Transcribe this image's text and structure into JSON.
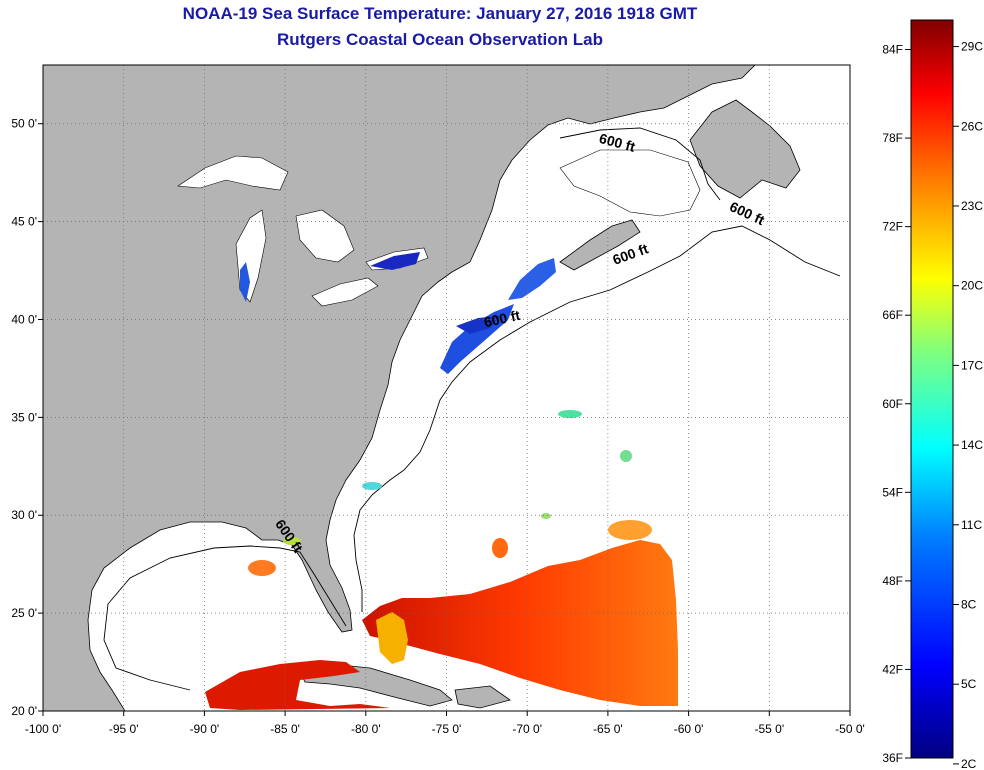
{
  "title": "NOAA-19 Sea Surface Temperature:  January 27, 2016 1918 GMT",
  "subtitle": "Rutgers Coastal Ocean Observation Lab",
  "map": {
    "lon_range": [
      -100,
      -50
    ],
    "lat_range": [
      20,
      53
    ],
    "x_ticks": [
      {
        "value": -100,
        "label": "-100 0'"
      },
      {
        "value": -95,
        "label": "-95 0'"
      },
      {
        "value": -90,
        "label": "-90 0'"
      },
      {
        "value": -85,
        "label": "-85 0'"
      },
      {
        "value": -80,
        "label": "-80 0'"
      },
      {
        "value": -75,
        "label": "-75 0'"
      },
      {
        "value": -70,
        "label": "-70 0'"
      },
      {
        "value": -65,
        "label": "-65 0'"
      },
      {
        "value": -60,
        "label": "-60 0'"
      },
      {
        "value": -55,
        "label": "-55 0'"
      },
      {
        "value": -50,
        "label": "-50 0'"
      }
    ],
    "y_ticks": [
      {
        "value": 20,
        "label": "20 0'"
      },
      {
        "value": 25,
        "label": "25 0'"
      },
      {
        "value": 30,
        "label": "30 0'"
      },
      {
        "value": 35,
        "label": "35 0'"
      },
      {
        "value": 40,
        "label": "40 0'"
      },
      {
        "value": 45,
        "label": "45 0'"
      },
      {
        "value": 50,
        "label": "50 0'"
      }
    ],
    "grid": true,
    "land_color": "#b4b4b4",
    "ocean_color": "#ffffff",
    "contour_labels": [
      {
        "text": "600 ft",
        "lon": -64.5,
        "lat": 48.8,
        "angle": 15
      },
      {
        "text": "600 ft",
        "lon": -56.5,
        "lat": 45.2,
        "angle": 25
      },
      {
        "text": "600 ft",
        "lon": -63.5,
        "lat": 43.1,
        "angle": -20
      },
      {
        "text": "600 ft",
        "lon": -71.5,
        "lat": 39.8,
        "angle": -12
      },
      {
        "text": "600 ft",
        "lon": -85,
        "lat": 28.8,
        "angle": 55
      }
    ]
  },
  "colorbar": {
    "f_labels": [
      "84F",
      "78F",
      "72F",
      "66F",
      "60F",
      "54F",
      "48F",
      "42F",
      "36F"
    ],
    "f_values": [
      84,
      78,
      72,
      66,
      60,
      54,
      48,
      42,
      36
    ],
    "c_labels": [
      "29C",
      "26C",
      "23C",
      "20C",
      "17C",
      "14C",
      "11C",
      "8C",
      "5C",
      "2C"
    ],
    "c_values": [
      29,
      26,
      23,
      20,
      17,
      14,
      11,
      8,
      5,
      2
    ],
    "range_f": [
      36,
      86
    ],
    "colors": [
      "#00007f",
      "#0000ff",
      "#007fff",
      "#00ffff",
      "#7fff7f",
      "#ffff00",
      "#ff7f00",
      "#ff0000",
      "#7f0000"
    ]
  }
}
